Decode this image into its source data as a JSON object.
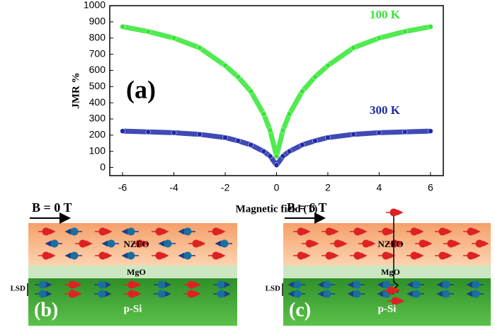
{
  "chart_data": {
    "type": "scatter",
    "x_label": "Magnetic field (T)",
    "y_label": "JMR %",
    "annotations": [
      "(a)",
      "100 K",
      "300 K"
    ],
    "xlim": [
      -6.5,
      6.5
    ],
    "xticks": [
      -6,
      -4,
      -2,
      0,
      2,
      4,
      6
    ],
    "ylim": [
      -50,
      1000
    ],
    "yticks": [
      0,
      100,
      200,
      300,
      400,
      500,
      600,
      700,
      800,
      900,
      1000
    ],
    "x": [
      -6,
      -5,
      -4,
      -3,
      -2,
      -1.5,
      -1,
      -0.5,
      -0.25,
      0,
      0.25,
      0.5,
      1,
      1.5,
      2,
      3,
      4,
      5,
      6
    ],
    "series": [
      {
        "name": "100 K",
        "color": "#33e633",
        "values": [
          870,
          840,
          800,
          740,
          630,
          560,
          470,
          330,
          230,
          70,
          230,
          330,
          470,
          560,
          630,
          740,
          800,
          840,
          870
        ]
      },
      {
        "name": "300 K",
        "color": "#1f2aa8",
        "values": [
          225,
          220,
          215,
          205,
          185,
          165,
          140,
          100,
          70,
          15,
          70,
          100,
          140,
          165,
          185,
          205,
          215,
          220,
          225
        ]
      }
    ]
  },
  "panels": [
    {
      "field": "B = 0 T",
      "top": "NZFO",
      "middle": "MgO",
      "bottom": "p-Si",
      "lsd": "LSD",
      "label": "(b)"
    },
    {
      "field": "B = 6 T",
      "top": "NZFO",
      "middle": "MgO",
      "bottom": "p-Si",
      "lsd": "LSD",
      "label": "(c)"
    }
  ]
}
